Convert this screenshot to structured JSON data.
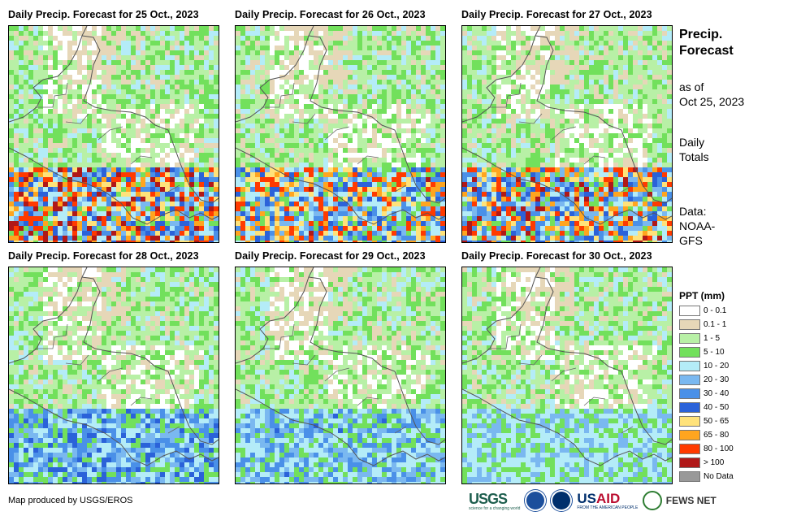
{
  "panels": [
    {
      "title": "Daily Precip. Forecast for 25 Oct., 2023",
      "intensity": 1.0
    },
    {
      "title": "Daily Precip. Forecast for 26 Oct., 2023",
      "intensity": 0.9
    },
    {
      "title": "Daily Precip. Forecast for 27 Oct., 2023",
      "intensity": 0.95
    },
    {
      "title": "Daily Precip. Forecast for 28 Oct., 2023",
      "intensity": 0.5
    },
    {
      "title": "Daily Precip. Forecast for 29 Oct., 2023",
      "intensity": 0.45
    },
    {
      "title": "Daily Precip. Forecast for 30 Oct., 2023",
      "intensity": 0.3
    }
  ],
  "side": {
    "title_line1": "Precip.",
    "title_line2": "Forecast",
    "asof_line1": "as of",
    "asof_line2": "Oct 25, 2023",
    "totals_line1": "Daily",
    "totals_line2": "Totals",
    "data_line1": "Data:",
    "data_line2": "NOAA-",
    "data_line3": "GFS"
  },
  "legend": {
    "title": "PPT (mm)",
    "items": [
      {
        "label": "0 - 0.1",
        "color": "#ffffff"
      },
      {
        "label": "0.1 - 1",
        "color": "#e6d7b8"
      },
      {
        "label": "1 - 5",
        "color": "#b8f0a6"
      },
      {
        "label": "5 - 10",
        "color": "#72e05c"
      },
      {
        "label": "10 - 20",
        "color": "#b4ecf8"
      },
      {
        "label": "20 - 30",
        "color": "#7ab8f0"
      },
      {
        "label": "30 - 40",
        "color": "#4a90e8"
      },
      {
        "label": "40 - 50",
        "color": "#2b62d9"
      },
      {
        "label": "50 - 65",
        "color": "#ffe27a"
      },
      {
        "label": "65 - 80",
        "color": "#ffa51f"
      },
      {
        "label": "80 - 100",
        "color": "#ff3a00"
      },
      {
        "label": "> 100",
        "color": "#b01818"
      },
      {
        "label": "No Data",
        "color": "#999999"
      }
    ]
  },
  "credit": "Map produced by USGS/EROS",
  "logos": {
    "usgs": "USGS",
    "usgs_tagline": "science for a changing world",
    "usaid_a": "US",
    "usaid_b": "AID",
    "usaid_tagline": "FROM THE AMERICAN PEOPLE",
    "fews": "FEWS NET",
    "noaa_icon": "noaa-seal-icon",
    "fews_icon": "fews-globe-icon"
  }
}
